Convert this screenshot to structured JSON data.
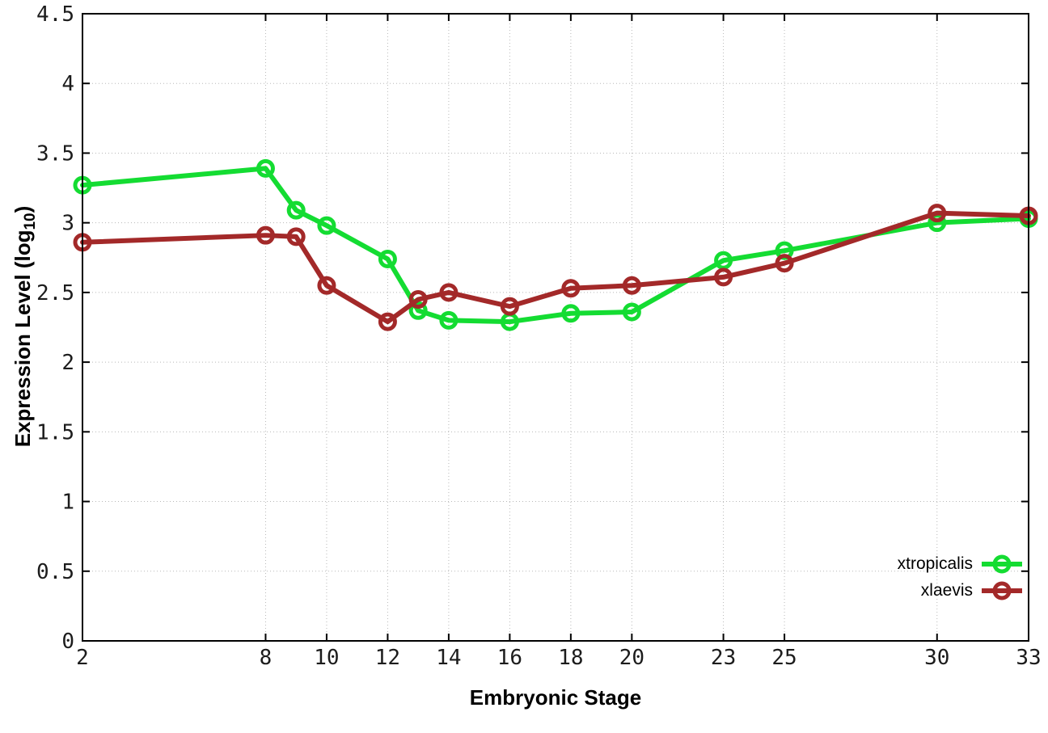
{
  "chart_data": {
    "type": "line",
    "title": "",
    "xlabel": "Embryonic Stage",
    "ylabel": "Expression Level (log10)",
    "ylabel_parts": {
      "pre": "Expression Level (log",
      "sub": "10",
      "post": ")"
    },
    "xlim": [
      2,
      33
    ],
    "ylim": [
      0,
      4.5
    ],
    "grid": true,
    "grid_style": "dotted-gray",
    "legend_position": "inside-bottom-right",
    "x_ticks": [
      2,
      8,
      10,
      12,
      14,
      16,
      18,
      20,
      23,
      25,
      30,
      33
    ],
    "x_tick_labels": [
      "2",
      "8",
      "10",
      "12",
      "14",
      "16",
      "18",
      "20",
      "23",
      "25",
      "30",
      "33"
    ],
    "y_ticks": [
      0,
      0.5,
      1,
      1.5,
      2,
      2.5,
      3,
      3.5,
      4,
      4.5
    ],
    "y_tick_labels": [
      "0",
      "0.5",
      "1",
      "1.5",
      "2",
      "2.5",
      "3",
      "3.5",
      "4",
      "4.5"
    ],
    "series": [
      {
        "name": "xtropicalis",
        "color": "#14dc32",
        "marker": "open-circle",
        "x": [
          2,
          8,
          9,
          10,
          12,
          13,
          14,
          16,
          18,
          20,
          23,
          25,
          30,
          33
        ],
        "y": [
          3.27,
          3.39,
          3.09,
          2.98,
          2.74,
          2.37,
          2.3,
          2.29,
          2.35,
          2.36,
          2.73,
          2.8,
          3.0,
          3.03
        ]
      },
      {
        "name": "xlaevis",
        "color": "#a32929",
        "marker": "open-circle",
        "x": [
          2,
          8,
          9,
          10,
          12,
          13,
          14,
          16,
          18,
          20,
          23,
          25,
          30,
          33
        ],
        "y": [
          2.86,
          2.91,
          2.9,
          2.55,
          2.29,
          2.45,
          2.5,
          2.4,
          2.53,
          2.55,
          2.61,
          2.71,
          3.07,
          3.05
        ]
      }
    ],
    "colors": {
      "border": "#000000",
      "grid": "#b8b8b8",
      "tick_text": "#1c1c1c"
    }
  }
}
